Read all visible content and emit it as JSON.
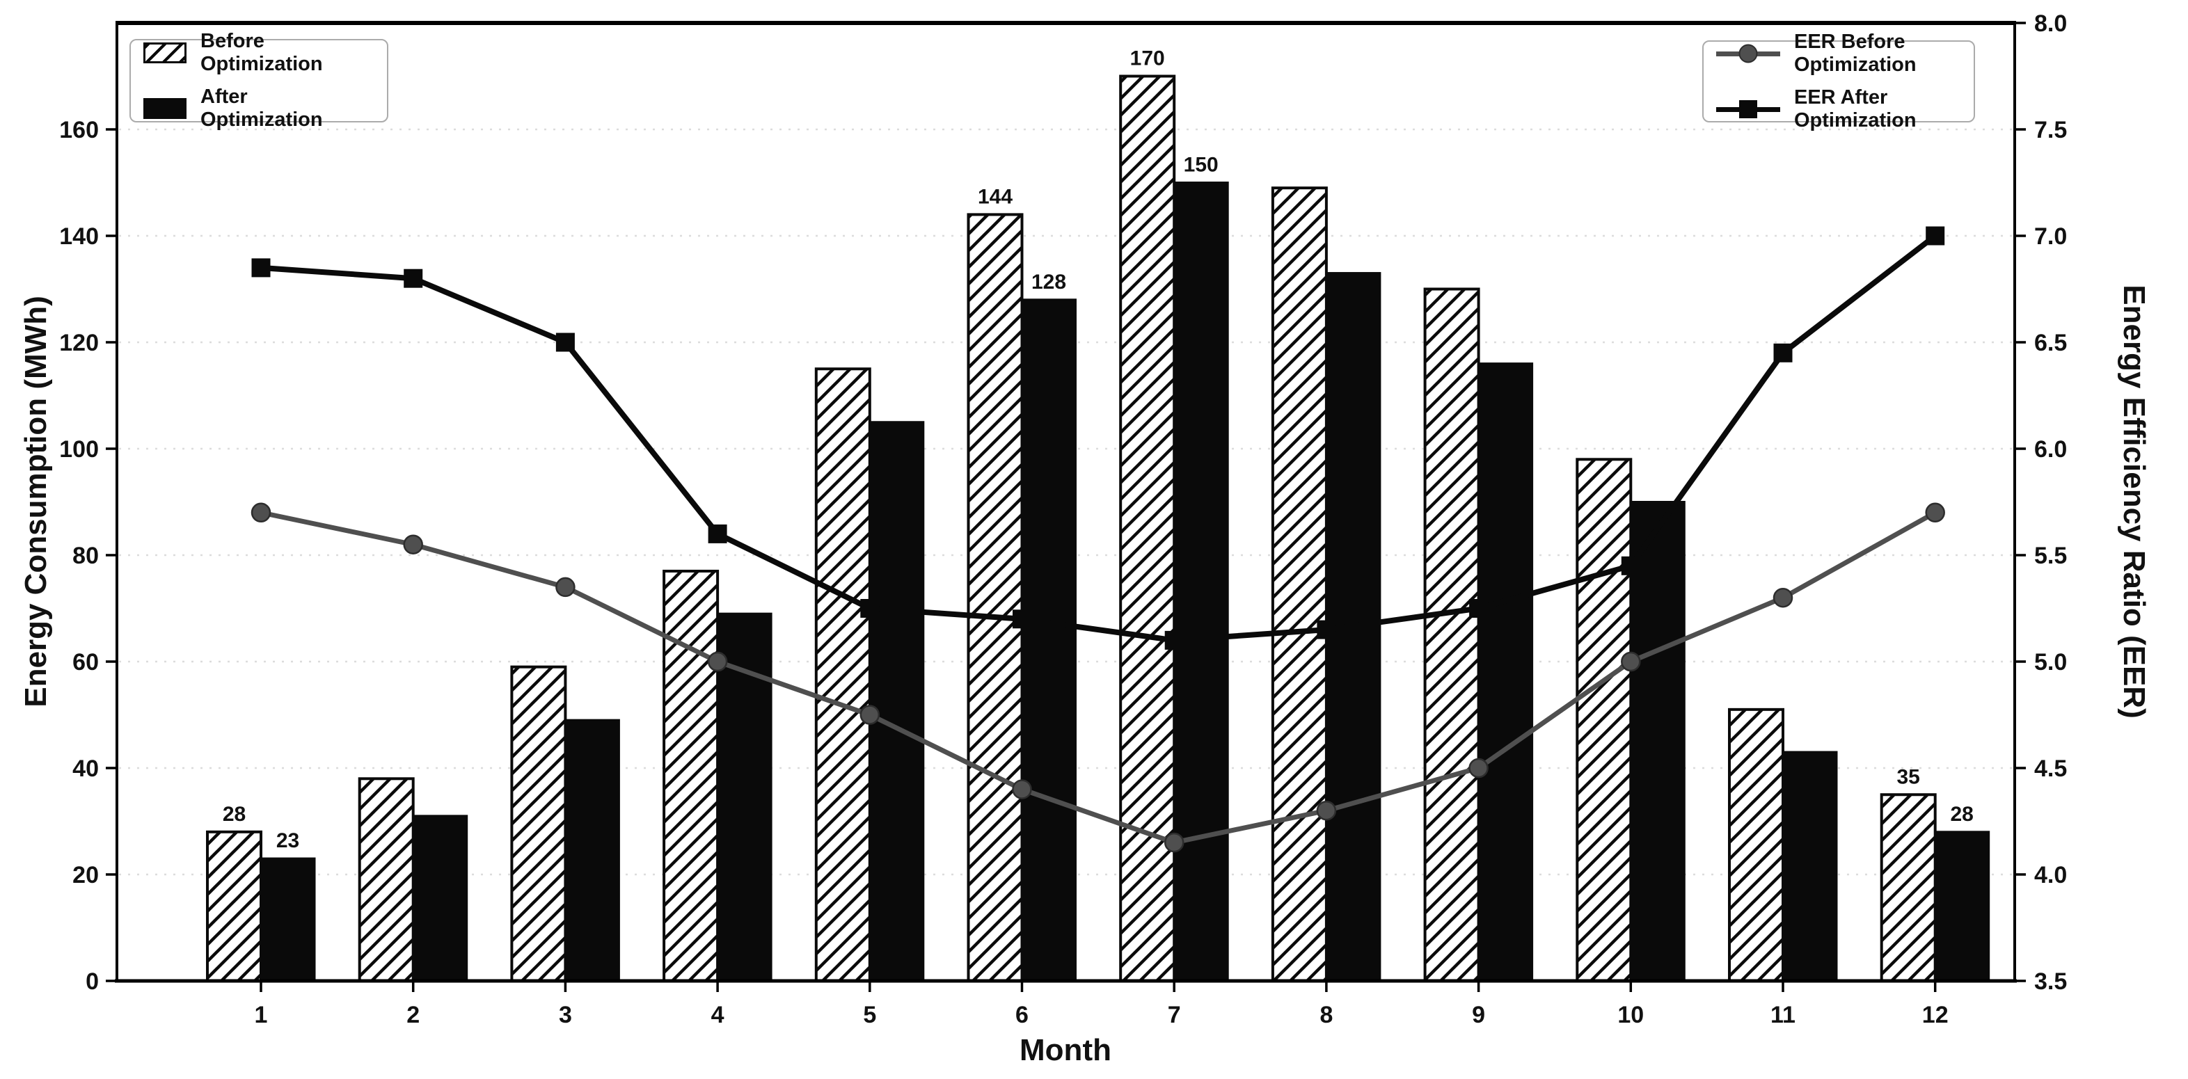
{
  "page": {
    "background": "#ffffff"
  },
  "chart_data": {
    "type": "combo",
    "title": "",
    "x": [
      1,
      2,
      3,
      4,
      5,
      6,
      7,
      8,
      9,
      10,
      11,
      12
    ],
    "xlabel": "Month",
    "axes": {
      "left": {
        "label": "Energy Consumption (MWh)",
        "lim": [
          0,
          180
        ],
        "ticks": [
          0,
          20,
          40,
          60,
          80,
          100,
          120,
          140,
          160
        ]
      },
      "right": {
        "label": "Energy Efficiency Ratio (EER)",
        "lim": [
          3.5,
          8.0
        ],
        "ticks": [
          3.5,
          4.0,
          4.5,
          5.0,
          5.5,
          6.0,
          6.5,
          7.0,
          7.5,
          8.0
        ]
      }
    },
    "grid": true,
    "legend_positions": [
      "upper left",
      "upper right"
    ],
    "series": [
      {
        "name": "Before Optimization",
        "type": "bar",
        "axis": "left",
        "style": "hatched",
        "hatch": "/",
        "color": "#ffffff",
        "values": [
          28,
          38,
          59,
          77,
          115,
          144,
          170,
          149,
          130,
          98,
          51,
          35
        ]
      },
      {
        "name": "After Optimization",
        "type": "bar",
        "axis": "left",
        "style": "solid",
        "color": "#0a0a0a",
        "values": [
          23,
          31,
          49,
          69,
          105,
          128,
          150,
          133,
          116,
          90,
          43,
          28
        ]
      },
      {
        "name": "EER Before Optimization",
        "type": "line",
        "axis": "right",
        "marker": "circle",
        "color": "#4f4f4f",
        "values": [
          5.7,
          5.55,
          5.35,
          5.0,
          4.75,
          4.4,
          4.15,
          4.3,
          4.5,
          5.0,
          5.3,
          5.7
        ]
      },
      {
        "name": "EER After Optimization",
        "type": "line",
        "axis": "right",
        "marker": "square",
        "color": "#0a0a0a",
        "values": [
          6.85,
          6.8,
          6.5,
          5.6,
          5.25,
          5.2,
          5.1,
          5.15,
          5.25,
          5.45,
          6.45,
          7.0
        ]
      }
    ],
    "value_labels": [
      {
        "month": 1,
        "before": "28",
        "after": "23"
      },
      {
        "month": 6,
        "before": "144",
        "after": "128"
      },
      {
        "month": 7,
        "before": "170",
        "after": "150"
      },
      {
        "month": 12,
        "before": "35",
        "after": "28"
      }
    ],
    "colors": {
      "grid": "#dcdcdc",
      "text": "#111111",
      "spine": "#000000",
      "bar_before_fill": "#ffffff",
      "bar_after": "#0a0a0a",
      "line_before": "#4f4f4f",
      "line_after": "#0a0a0a"
    }
  }
}
